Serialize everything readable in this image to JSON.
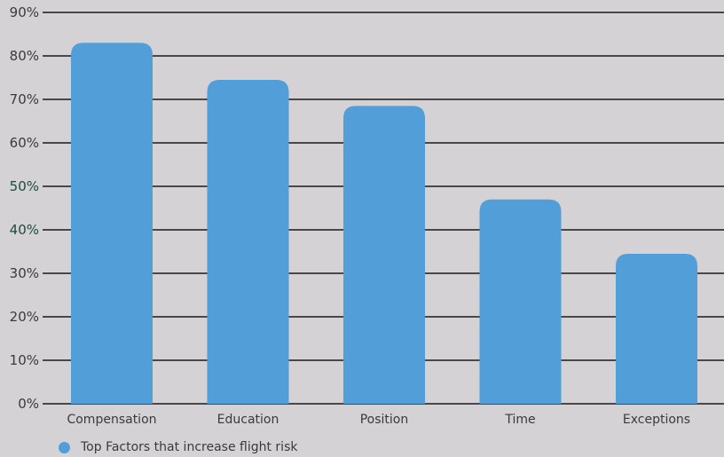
{
  "chart_data": {
    "type": "bar",
    "categories": [
      "Compensation",
      "Education",
      "Position",
      "Time",
      "Exceptions"
    ],
    "series": [
      {
        "name": "Top Factors that increase flight risk",
        "values": [
          83,
          74.5,
          68.5,
          47,
          34.5
        ]
      }
    ],
    "ylim": [
      0,
      90
    ],
    "yticks": [
      "0%",
      "10%",
      "20%",
      "30%",
      "40%",
      "50%",
      "60%",
      "70%",
      "80%",
      "90%"
    ],
    "accent_ticks": [
      "40%",
      "50%"
    ],
    "bar_color": "#519ed8",
    "grid_color": "#1a1a1a",
    "grid": true,
    "legend_position": "bottom-left"
  }
}
